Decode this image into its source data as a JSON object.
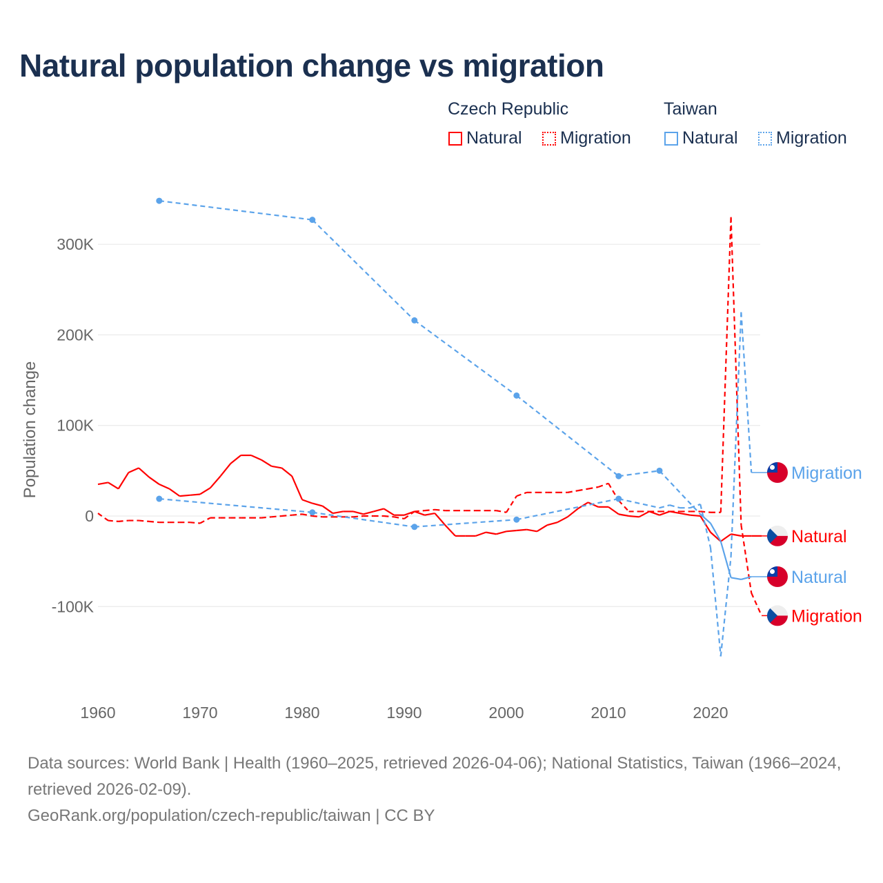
{
  "title": "Natural population change vs migration",
  "legend": {
    "groups": [
      {
        "name": "Czech Republic",
        "color": "#ff0000",
        "items": [
          "Natural",
          "Migration"
        ]
      },
      {
        "name": "Taiwan",
        "color": "#5ba3ea",
        "items": [
          "Natural",
          "Migration"
        ]
      }
    ]
  },
  "footer": {
    "line1": "Data sources: World Bank | Health (1960–2025, retrieved 2026-04-06); National Statistics, Taiwan (1966–2024, retrieved 2026-02-09).",
    "line2": "GeoRank.org/population/czech-republic/taiwan | CC BY"
  },
  "chart_data": {
    "type": "line",
    "title": "Natural population change vs migration",
    "ylabel": "Population change",
    "xlabel": "",
    "xlim": [
      1960,
      2025
    ],
    "ylim": [
      -170000,
      360000
    ],
    "x_ticks": [
      1960,
      1970,
      1980,
      1990,
      2000,
      2010,
      2020
    ],
    "x_tick_labels": [
      "1960",
      "1970",
      "1980",
      "1990",
      "2000",
      "2010",
      "2020"
    ],
    "y_ticks": [
      -100000,
      0,
      100000,
      200000,
      300000
    ],
    "y_tick_labels": [
      "-100K",
      "0",
      "100K",
      "200K",
      "300K"
    ],
    "grid": true,
    "legend_position": "top-right",
    "series": [
      {
        "name": "Czech Republic Natural",
        "label": "Natural",
        "country": "Czech Republic",
        "color": "#ff0000",
        "style": "solid",
        "start_year": 1960,
        "values_k": [
          35,
          37,
          30,
          48,
          53,
          43,
          35,
          30,
          22,
          23,
          24,
          31,
          44,
          58,
          67,
          67,
          62,
          55,
          53,
          44,
          18,
          14,
          11,
          3,
          5,
          5,
          2,
          5,
          8,
          1,
          1,
          5,
          1,
          3,
          -10,
          -22,
          -22,
          -22,
          -18,
          -20,
          -17,
          -16,
          -15,
          -17,
          -10,
          -7,
          -1,
          8,
          15,
          10,
          10,
          2,
          0,
          -1,
          5,
          1,
          5,
          3,
          1,
          0,
          -18,
          -28,
          -20,
          -22,
          -22,
          -22
        ]
      },
      {
        "name": "Czech Republic Migration",
        "label": "Migration",
        "country": "Czech Republic",
        "color": "#ff0000",
        "style": "dashed",
        "start_year": 1960,
        "values_k": [
          3,
          -5,
          -6,
          -5,
          -5,
          -6,
          -7,
          -7,
          -7,
          -7,
          -8,
          -2,
          -2,
          -2,
          -2,
          -2,
          -2,
          -1,
          0,
          1,
          2,
          0,
          -1,
          -1,
          -1,
          -1,
          0,
          0,
          0,
          -1,
          -3,
          5,
          6,
          7,
          6,
          6,
          6,
          6,
          6,
          6,
          4,
          22,
          26,
          26,
          26,
          26,
          26,
          28,
          30,
          32,
          36,
          17,
          5,
          5,
          5,
          5,
          5,
          5,
          5,
          5,
          4,
          4,
          330,
          -10,
          -85,
          -110
        ]
      },
      {
        "name": "Taiwan Natural",
        "label": "Natural",
        "country": "Taiwan",
        "color": "#5ba3ea",
        "style": "solid",
        "points": [
          [
            1966,
            348
          ],
          [
            1981,
            327
          ],
          [
            1991,
            216
          ],
          [
            2001,
            133
          ],
          [
            2011,
            44
          ],
          [
            2015,
            50
          ],
          [
            2019,
            2
          ],
          [
            2020,
            -8
          ],
          [
            2021,
            -28
          ],
          [
            2022,
            -68
          ],
          [
            2023,
            -70
          ],
          [
            2024,
            -67
          ]
        ]
      },
      {
        "name": "Taiwan Migration",
        "label": "Migration",
        "country": "Taiwan",
        "color": "#5ba3ea",
        "style": "dashed",
        "points": [
          [
            1966,
            19
          ],
          [
            1981,
            4
          ],
          [
            1991,
            -12
          ],
          [
            2001,
            -4
          ],
          [
            2011,
            19
          ],
          [
            2015,
            9
          ],
          [
            2016,
            12
          ],
          [
            2017,
            9
          ],
          [
            2018,
            9
          ],
          [
            2019,
            13
          ],
          [
            2020,
            -35
          ],
          [
            2021,
            -155
          ],
          [
            2022,
            -45
          ],
          [
            2023,
            225
          ],
          [
            2024,
            48
          ]
        ]
      }
    ],
    "units": "thousands"
  }
}
